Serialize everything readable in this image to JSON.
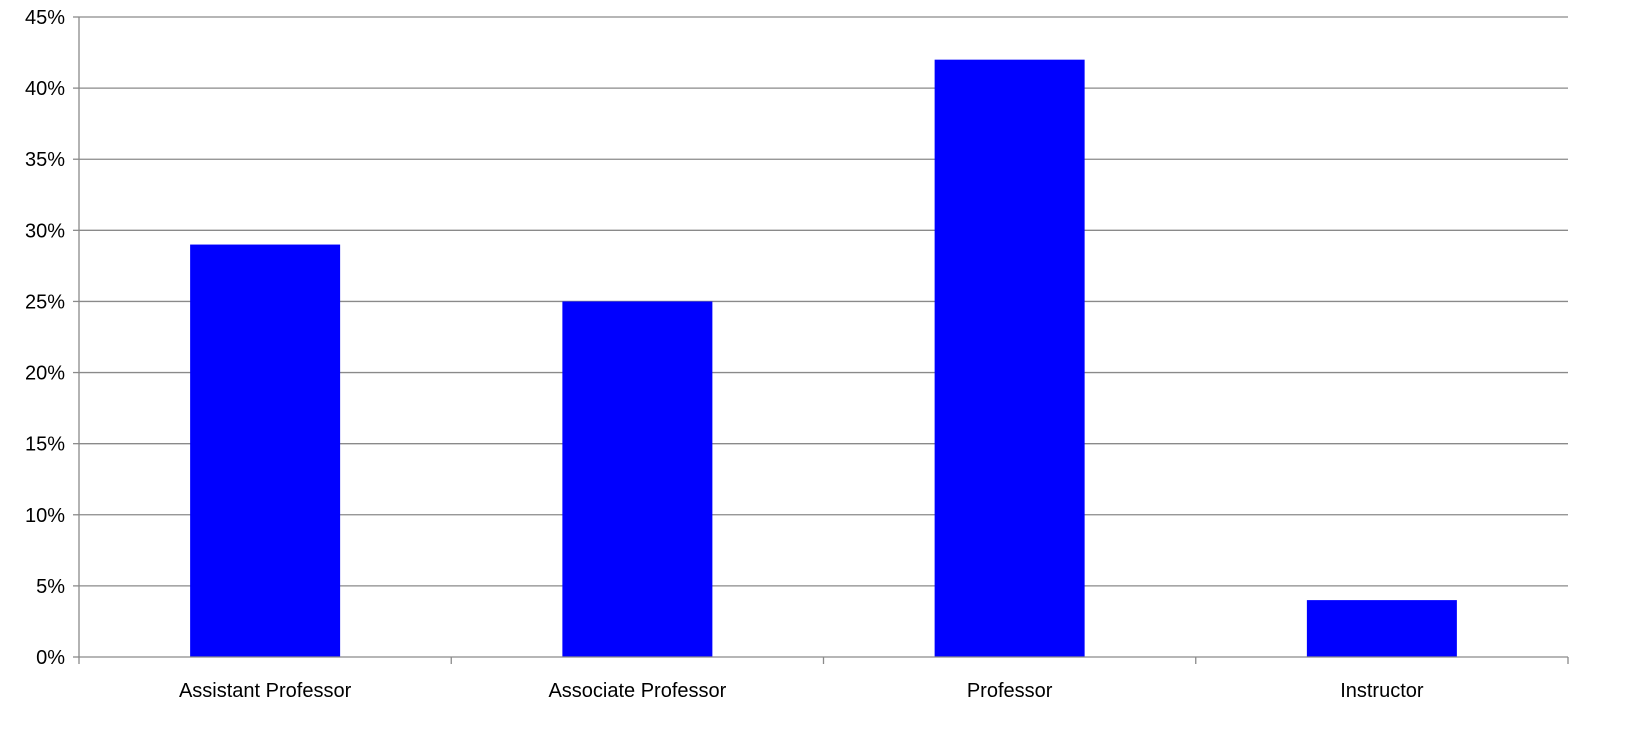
{
  "chart_data": {
    "type": "bar",
    "title": "",
    "xlabel": "",
    "ylabel": "",
    "categories": [
      "Assistant Professor",
      "Associate Professor",
      "Professor",
      "Instructor"
    ],
    "values": [
      29,
      25,
      42,
      4
    ],
    "ylim": [
      0,
      45
    ],
    "y_tick_step": 5,
    "y_tick_format": "percent",
    "grid": true,
    "legend": "none",
    "bar_color": "#0000ff"
  }
}
